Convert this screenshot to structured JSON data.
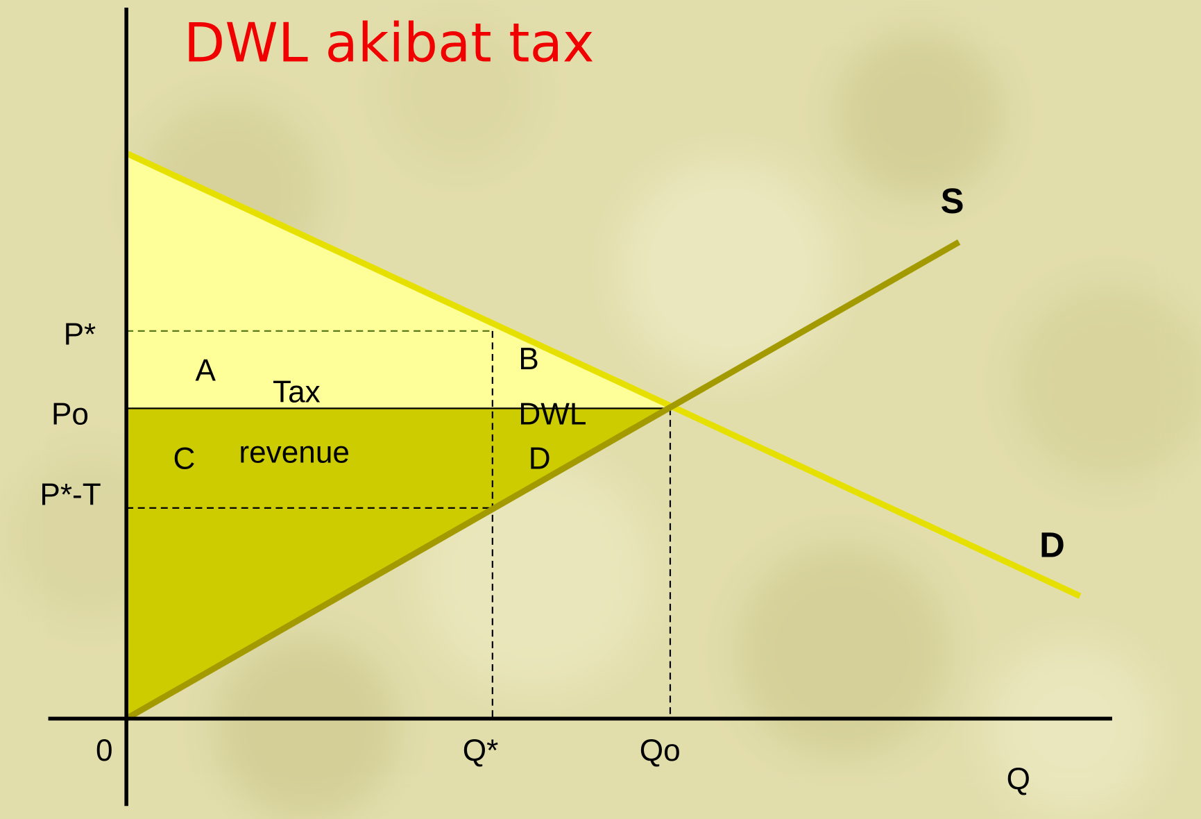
{
  "title": "DWL akibat tax",
  "price_labels": {
    "p_star": "P*",
    "p_o": "Po",
    "p_star_minus_t": "P*-T"
  },
  "quantity_labels": {
    "origin": "0",
    "q_star": "Q*",
    "q_o": "Qo",
    "axis": "Q"
  },
  "curves": {
    "supply": "S",
    "demand": "D"
  },
  "areas": {
    "a": "A",
    "tax_1": "Tax",
    "tax_2": "revenue",
    "c": "C",
    "b": "B",
    "dwl": "DWL",
    "d": "D"
  }
}
